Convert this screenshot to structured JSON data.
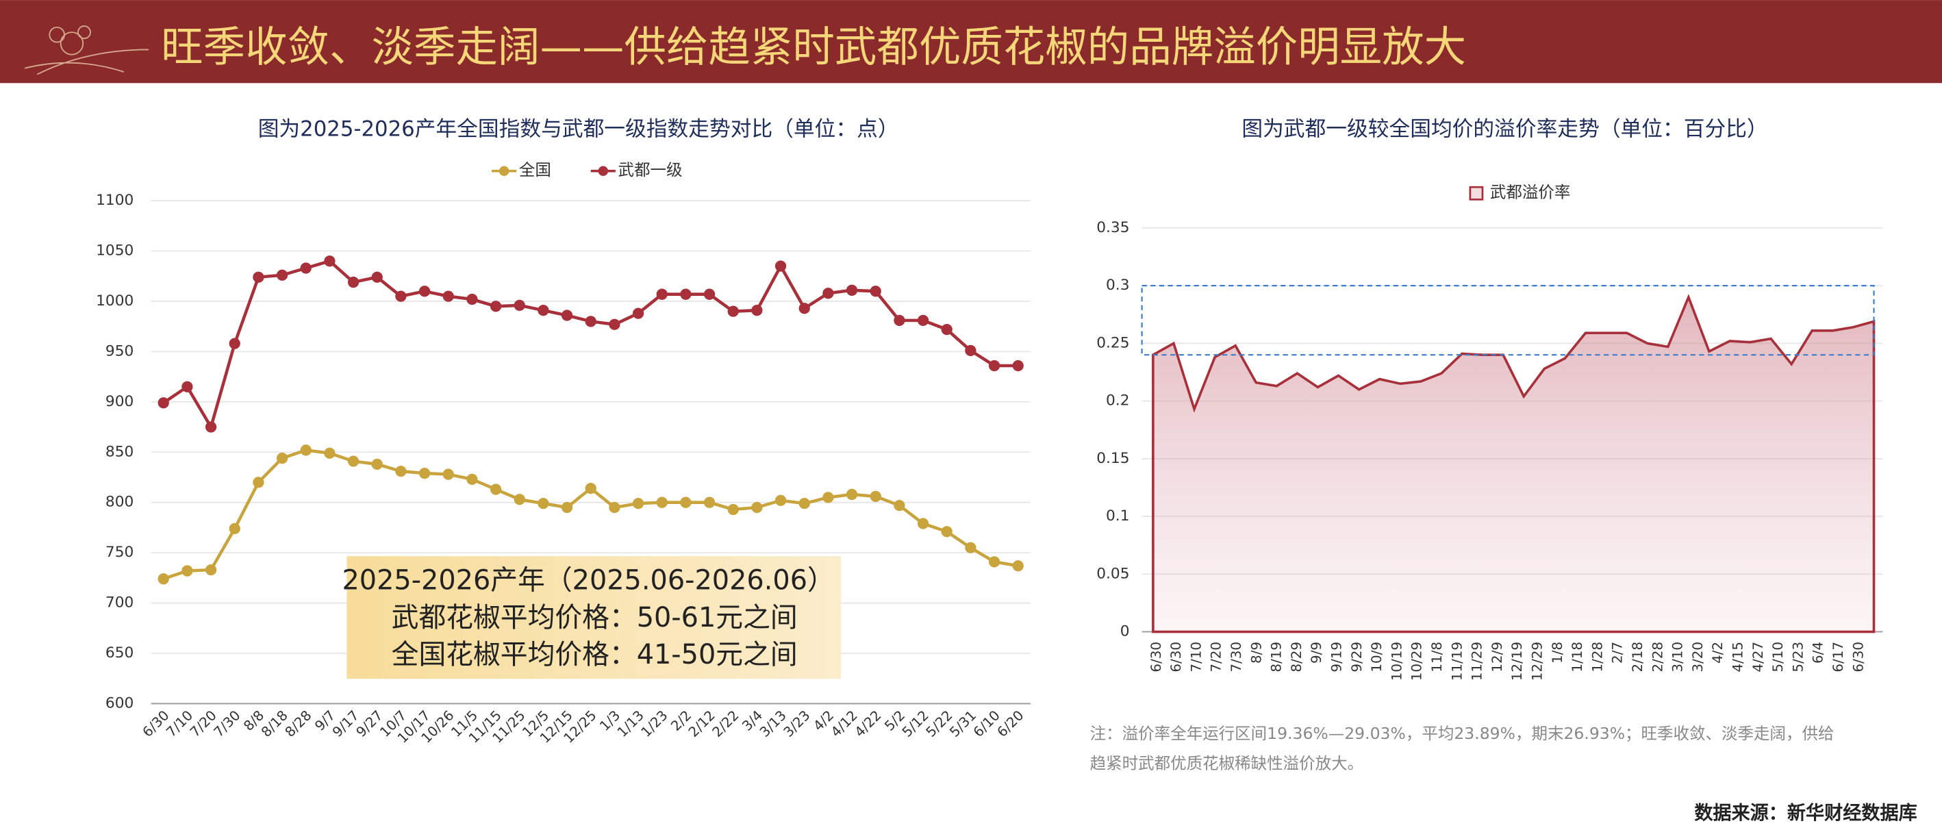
{
  "header": {
    "title": "旺季收敛、淡季走阔——供给趋紧时武都优质花椒的品牌溢价明显放大"
  },
  "chart_data": [
    {
      "type": "line",
      "title": "图为2025-2026产年全国指数与武都一级指数走势对比（单位：点）",
      "categories": [
        "6/30",
        "7/10",
        "7/20",
        "7/30",
        "8/8",
        "8/18",
        "8/28",
        "9/7",
        "9/17",
        "9/27",
        "10/7",
        "10/17",
        "10/26",
        "11/5",
        "11/15",
        "11/25",
        "12/5",
        "12/15",
        "12/25",
        "1/3",
        "1/13",
        "1/23",
        "2/2",
        "2/12",
        "2/22",
        "3/4",
        "3/13",
        "3/23",
        "4/2",
        "4/12",
        "4/22",
        "5/2",
        "5/12",
        "5/22",
        "5/31",
        "6/10",
        "6/20"
      ],
      "series": [
        {
          "name": "全国",
          "color": "#c9a43c",
          "values": [
            724,
            732,
            733,
            774,
            820,
            844,
            852,
            849,
            841,
            838,
            831,
            829,
            828,
            823,
            813,
            803,
            799,
            795,
            814,
            795,
            799,
            800,
            800,
            800,
            793,
            795,
            802,
            799,
            805,
            808,
            806,
            797,
            779,
            771,
            755,
            741,
            737
          ]
        },
        {
          "name": "武都一级",
          "color": "#a8303a",
          "values": [
            899,
            915,
            875,
            958,
            1024,
            1026,
            1033,
            1040,
            1019,
            1024,
            1005,
            1010,
            1005,
            1002,
            995,
            996,
            991,
            986,
            980,
            977,
            988,
            1007,
            1007,
            1007,
            990,
            991,
            1035,
            993,
            1008,
            1011,
            1010,
            981,
            981,
            972,
            951,
            936,
            936
          ]
        }
      ],
      "ylim": [
        600,
        1100
      ],
      "yticks": [
        600,
        650,
        700,
        750,
        800,
        850,
        900,
        950,
        1000,
        1050,
        1100
      ],
      "grid": true,
      "legend": "top",
      "annotation": [
        "2025-2026产年（2025.06-2026.06）",
        "武都花椒平均价格：50-61元之间",
        "全国花椒平均价格：41-50元之间"
      ]
    },
    {
      "type": "area",
      "title": "图为武都一级较全国均价的溢价率走势（单位：百分比）",
      "categories": [
        "6/30",
        "6/30",
        "7/10",
        "7/20",
        "7/30",
        "8/9",
        "8/19",
        "8/29",
        "9/9",
        "9/19",
        "9/29",
        "10/9",
        "10/19",
        "10/29",
        "11/8",
        "11/19",
        "11/29",
        "12/9",
        "12/19",
        "12/29",
        "1/8",
        "1/18",
        "1/28",
        "2/7",
        "2/18",
        "2/28",
        "3/10",
        "3/20",
        "4/2",
        "4/15",
        "4/27",
        "5/10",
        "5/23",
        "6/4",
        "6/17",
        "6/30"
      ],
      "series": [
        {
          "name": "武都溢价率",
          "color": "#a8303a",
          "values": [
            0.24,
            0.25,
            0.193,
            0.238,
            0.248,
            0.216,
            0.213,
            0.224,
            0.212,
            0.222,
            0.21,
            0.219,
            0.215,
            0.217,
            0.224,
            0.241,
            0.24,
            0.24,
            0.204,
            0.228,
            0.237,
            0.259,
            0.259,
            0.259,
            0.25,
            0.247,
            0.29,
            0.243,
            0.252,
            0.251,
            0.254,
            0.232,
            0.261,
            0.261,
            0.264,
            0.269
          ]
        }
      ],
      "ylim": [
        0,
        0.35
      ],
      "yticks": [
        0,
        0.05,
        0.1,
        0.15,
        0.2,
        0.25,
        0.3,
        0.35
      ],
      "grid": true,
      "legend": "top",
      "highlight_range": [
        0.24,
        0.3
      ]
    }
  ],
  "note": [
    "注：溢价率全年运行区间19.36%—29.03%，平均23.89%，期末26.93%；旺季收敛、淡季走阔，供给",
    "趋紧时武都优质花椒稀缺性溢价放大。"
  ],
  "source": "数据来源：新华财经数据库"
}
